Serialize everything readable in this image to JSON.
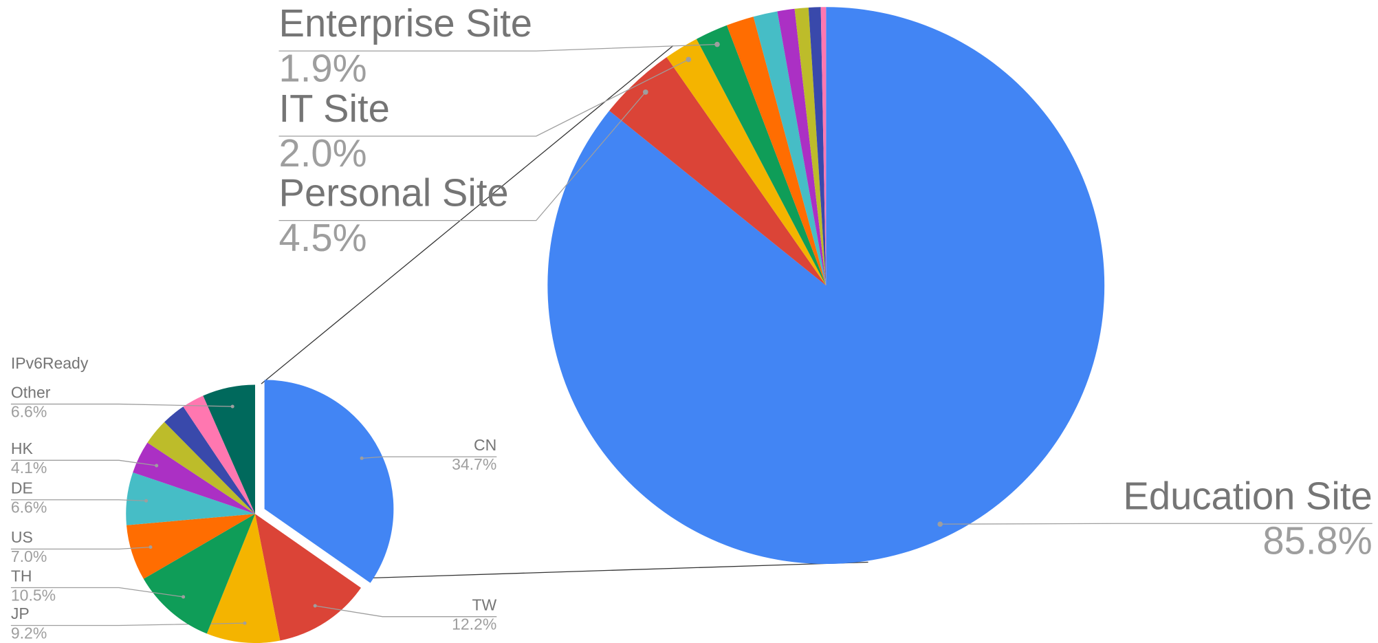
{
  "chart_data": [
    {
      "type": "pie",
      "title": "IPv6Ready",
      "categories": [
        "CN",
        "TW",
        "JP",
        "TH",
        "US",
        "DE",
        "HK",
        null,
        null,
        null,
        "Other"
      ],
      "values": [
        34.7,
        12.2,
        9.2,
        10.5,
        7.0,
        6.6,
        4.1,
        3.3,
        3.0,
        2.8,
        6.6
      ],
      "value_labels": [
        "34.7%",
        "12.2%",
        "9.2%",
        "10.5%",
        "7.0%",
        "6.6%",
        "4.1%",
        null,
        null,
        null,
        "6.6%"
      ],
      "colors": [
        "#4285f4",
        "#db4437",
        "#f4b400",
        "#0f9d58",
        "#ff6d01",
        "#46bdc6",
        "#ab30c4",
        "#bdbc2a",
        "#3949ab",
        "#ff77b0",
        "#00695c"
      ]
    },
    {
      "type": "pie",
      "categories": [
        "Education Site",
        "Personal Site",
        "IT Site",
        "Enterprise Site",
        null,
        null,
        null,
        null,
        null,
        null
      ],
      "values": [
        85.8,
        4.5,
        2.0,
        1.9,
        1.6,
        1.4,
        1.0,
        0.8,
        0.7,
        0.3
      ],
      "value_labels": [
        "85.8%",
        "4.5%",
        "2.0%",
        "1.9%",
        null,
        null,
        null,
        null,
        null,
        null
      ],
      "colors": [
        "#4285f4",
        "#db4437",
        "#f4b400",
        "#0f9d58",
        "#ff6d01",
        "#46bdc6",
        "#ab30c4",
        "#bdbc2a",
        "#3949ab",
        "#ff77b0"
      ]
    }
  ]
}
